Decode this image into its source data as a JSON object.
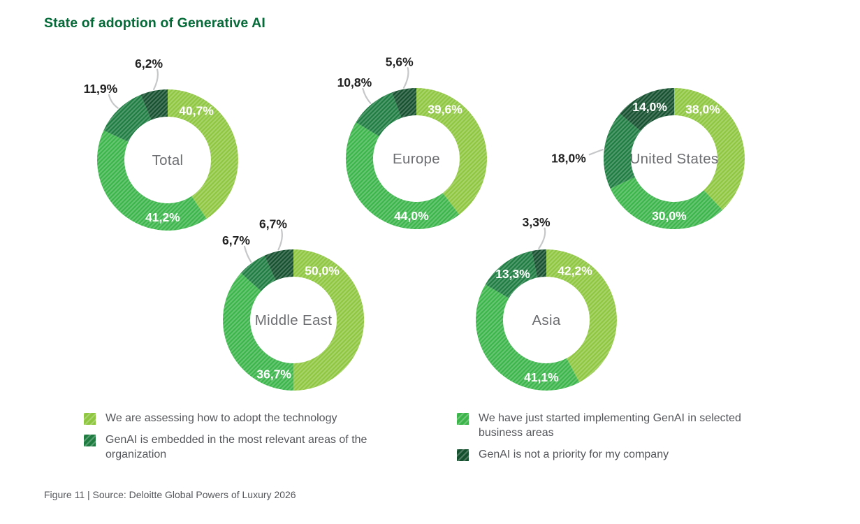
{
  "title": "State of adoption of Generative AI",
  "footer": "Figure 11 | Source: Deloitte Global Powers of Luxury 2026",
  "chart_data": {
    "type": "pie",
    "variant": "donut-small-multiples",
    "title": "State of adoption of Generative AI",
    "hatch_pattern": true,
    "decimal_separator": ",",
    "categories": [
      "We are assessing how to adopt the technology",
      "We have just started implementing GenAI in selected business areas",
      "GenAI is embedded in the most relevant areas of the organization",
      "GenAI is not a priority for my company"
    ],
    "colors": [
      "#8EC63F",
      "#3BB54A",
      "#1E7C41",
      "#14502E"
    ],
    "title_color": "#046A38",
    "center_label_color": "#6D6E71",
    "leader_line_color": "#C6C7C9",
    "charts": [
      {
        "name": "Total",
        "values": [
          40.7,
          41.2,
          11.9,
          6.2
        ],
        "display_labels": [
          "40,7%",
          "41,2%",
          "11,9%",
          "6,2%"
        ],
        "label_placement": [
          "inside",
          "inside",
          "outside",
          "outside"
        ]
      },
      {
        "name": "Europe",
        "values": [
          39.6,
          44.0,
          10.8,
          5.6
        ],
        "display_labels": [
          "39,6%",
          "44,0%",
          "10,8%",
          "5,6%"
        ],
        "label_placement": [
          "inside",
          "inside",
          "outside",
          "outside"
        ]
      },
      {
        "name": "United States",
        "values": [
          38.0,
          30.0,
          18.0,
          14.0
        ],
        "display_labels": [
          "38,0%",
          "30,0%",
          "18,0%",
          "14,0%"
        ],
        "label_placement": [
          "inside",
          "inside",
          "outside",
          "inside"
        ]
      },
      {
        "name": "Middle East",
        "values": [
          50.0,
          36.7,
          6.7,
          6.7
        ],
        "display_labels": [
          "50,0%",
          "36,7%",
          "6,7%",
          "6,7%"
        ],
        "label_placement": [
          "inside",
          "inside",
          "outside",
          "outside"
        ]
      },
      {
        "name": "Asia",
        "values": [
          42.2,
          41.1,
          13.3,
          3.3
        ],
        "display_labels": [
          "42,2%",
          "41,1%",
          "13,3%",
          "3,3%"
        ],
        "label_placement": [
          "inside",
          "inside",
          "inside",
          "outside"
        ]
      }
    ],
    "legend": {
      "position": "bottom",
      "columns": [
        [
          0,
          2
        ],
        [
          1,
          3
        ]
      ]
    }
  }
}
